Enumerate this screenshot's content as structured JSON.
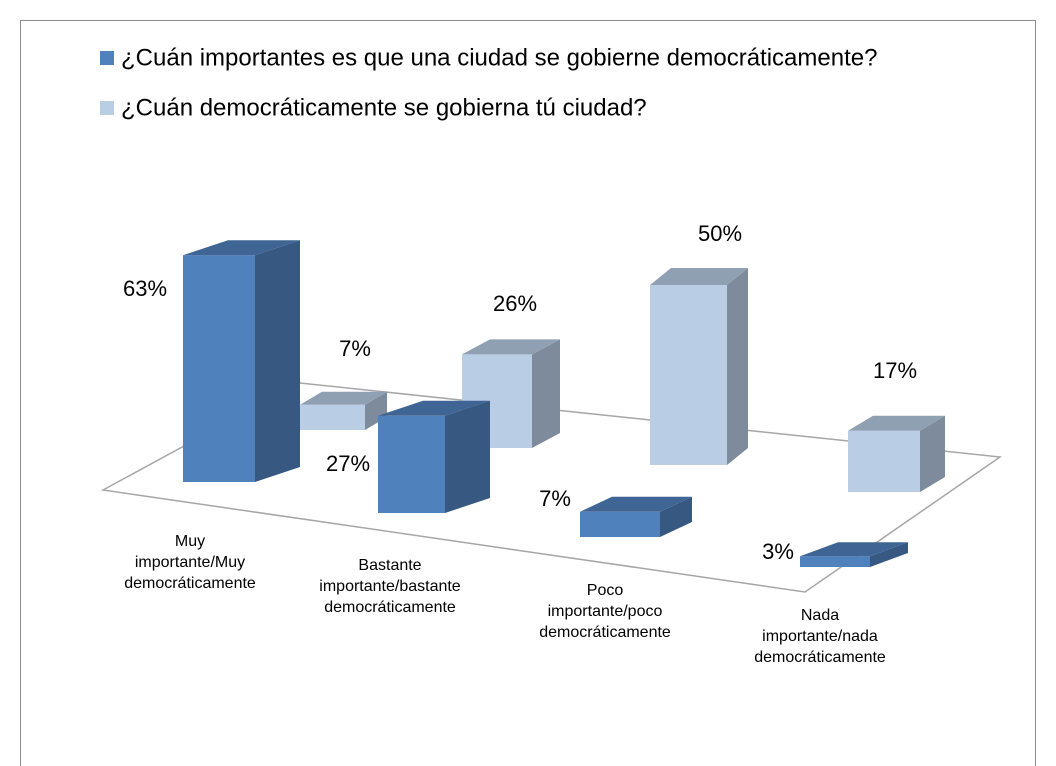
{
  "chart_data": {
    "type": "bar3d",
    "categories": [
      "Muy\nimportante/Muy\ndemocráticamente",
      "Bastante\nimportante/bastante\ndemocráticamente",
      "Poco\nimportante/poco\ndemocráticamente",
      "Nada\nimportante/nada\ndemocráticamente"
    ],
    "series": [
      {
        "name": "¿Cuán importantes es que una ciudad se gobierne democráticamente?",
        "color": "#4f81bd",
        "values": [
          63,
          27,
          7,
          3
        ],
        "value_labels": [
          "63%",
          "27%",
          "7%",
          "3%"
        ]
      },
      {
        "name": "¿Cuán democráticamente se gobierna tú ciudad?",
        "color": "#b9cde5",
        "values": [
          7,
          26,
          50,
          17
        ],
        "value_labels": [
          "7%",
          "26%",
          "50%",
          "17%"
        ]
      }
    ],
    "legend": "top"
  }
}
